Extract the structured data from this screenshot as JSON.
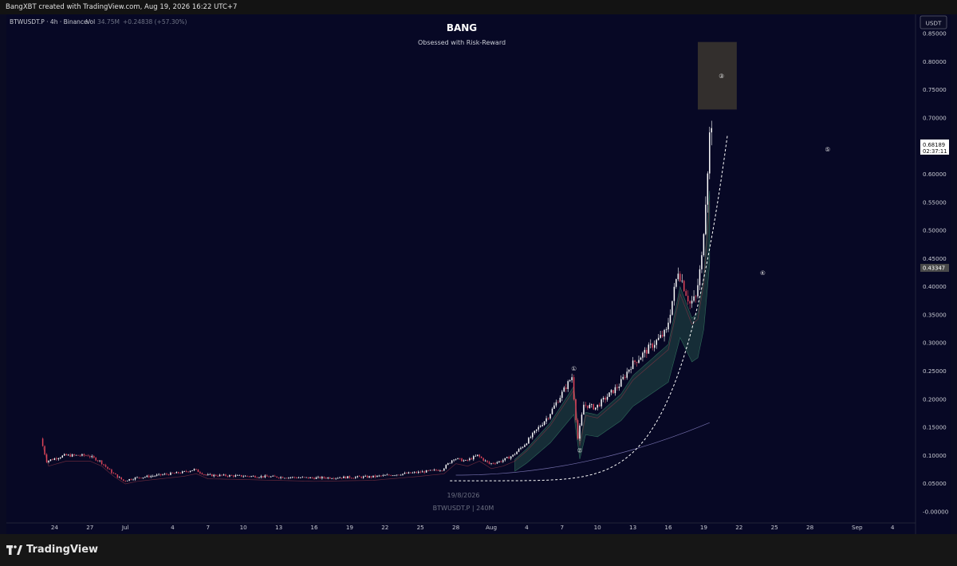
{
  "header": {
    "credit": "BangXBT created with TradingView.com, Aug 19, 2026 16:22 UTC+7"
  },
  "legend": {
    "symbol": "BTWUSDT.P · 4h · Binance",
    "vol_label": "Vol",
    "vol_value": "34.75M",
    "change": "+0.24838 (+57.30%)"
  },
  "currency_button": "USDT",
  "watermark": {
    "date": "19/8/2026",
    "symbol": "BTWUSDT.P | 240M"
  },
  "brand": "TradingView",
  "colors": {
    "background": "#070825",
    "up_candle": "#ffffff",
    "down_candle": "#e0455a",
    "dashed_curve": "#ffffff",
    "shaded_band": "#2b5a4e",
    "box_fill": "#38342f"
  },
  "price_tags": {
    "last_price": "0.68189",
    "countdown": "02:37:11",
    "level": "0.43347"
  },
  "wave_labels": [
    "①",
    "②",
    "③",
    "④",
    "⑤"
  ],
  "chart_data": {
    "type": "candlestick",
    "title": "BANG",
    "subtitle": "Obsessed with Risk-Reward",
    "xlabel": "",
    "ylabel": "",
    "y_axis_side": "right",
    "ylim": [
      -0.02,
      0.87
    ],
    "y_ticks": [
      "0.85000",
      "0.80000",
      "0.75000",
      "0.70000",
      "0.65000",
      "0.60000",
      "0.55000",
      "0.50000",
      "0.45000",
      "0.40000",
      "0.35000",
      "0.30000",
      "0.25000",
      "0.20000",
      "0.15000",
      "0.10000",
      "0.05000",
      "-0.00000"
    ],
    "x_ticks": [
      "24",
      "27",
      "Jul",
      "4",
      "7",
      "10",
      "13",
      "16",
      "19",
      "22",
      "25",
      "28",
      "Aug",
      "4",
      "7",
      "10",
      "13",
      "16",
      "19",
      "22",
      "25",
      "28",
      "Sep",
      "4"
    ],
    "x_tick_days": [
      -37,
      -34,
      -31,
      -27,
      -24,
      -21,
      -18,
      -15,
      -12,
      -9,
      -6,
      -3,
      0,
      3,
      6,
      9,
      12,
      15,
      18,
      21,
      24,
      27,
      31,
      34
    ],
    "price_path": [
      [
        -38,
        0.13
      ],
      [
        -37.5,
        0.09
      ],
      [
        -36,
        0.1
      ],
      [
        -34,
        0.1
      ],
      [
        -33,
        0.09
      ],
      [
        -32,
        0.07
      ],
      [
        -31,
        0.055
      ],
      [
        -30,
        0.06
      ],
      [
        -28,
        0.065
      ],
      [
        -26,
        0.07
      ],
      [
        -25,
        0.075
      ],
      [
        -24,
        0.065
      ],
      [
        -20,
        0.063
      ],
      [
        -15,
        0.06
      ],
      [
        -10,
        0.062
      ],
      [
        -8,
        0.066
      ],
      [
        -6,
        0.07
      ],
      [
        -4,
        0.075
      ],
      [
        -3,
        0.095
      ],
      [
        -2,
        0.09
      ],
      [
        -1,
        0.1
      ],
      [
        0,
        0.085
      ],
      [
        1,
        0.09
      ],
      [
        2,
        0.1
      ],
      [
        3,
        0.12
      ],
      [
        5,
        0.17
      ],
      [
        6,
        0.205
      ],
      [
        7,
        0.24
      ],
      [
        7.5,
        0.13
      ],
      [
        8,
        0.19
      ],
      [
        9,
        0.185
      ],
      [
        10,
        0.205
      ],
      [
        11,
        0.225
      ],
      [
        12,
        0.26
      ],
      [
        13,
        0.28
      ],
      [
        14,
        0.3
      ],
      [
        15,
        0.32
      ],
      [
        16,
        0.43
      ],
      [
        17,
        0.37
      ],
      [
        17.5,
        0.38
      ],
      [
        18,
        0.45
      ],
      [
        18.4,
        0.58
      ],
      [
        18.7,
        0.68
      ]
    ],
    "last_price": 0.68189,
    "level_marker": 0.43347,
    "annotations": [
      {
        "label": "①",
        "day": 7,
        "price": 0.255
      },
      {
        "label": "②",
        "day": 7.5,
        "price": 0.11
      },
      {
        "label": "③",
        "day": 19.5,
        "price": 0.775
      },
      {
        "label": "④",
        "day": 23,
        "price": 0.425
      },
      {
        "label": "⑤",
        "day": 28.5,
        "price": 0.645
      }
    ],
    "target_box": {
      "day_from": 17.5,
      "day_to": 20.8,
      "price_from": 0.715,
      "price_to": 0.835
    }
  }
}
